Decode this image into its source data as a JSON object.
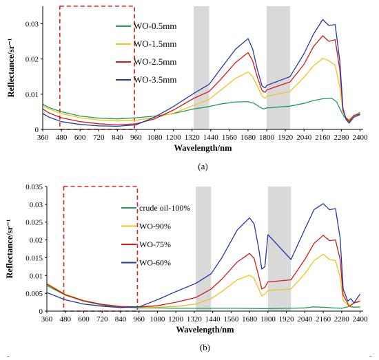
{
  "chart_data": [
    {
      "type": "line",
      "caption": "(a)",
      "xlabel": "Wavelength/nm",
      "ylabel": "Reflectance/sr⁻¹",
      "xlim": [
        360,
        2420
      ],
      "ylim": [
        0,
        0.035
      ],
      "x_ticks": [
        "360",
        "480",
        "600",
        "720",
        "840",
        "960",
        "1080",
        "1200",
        "1320",
        "1440",
        "1560",
        "1680",
        "1800",
        "1920",
        "2040",
        "2160",
        "2280",
        "2400"
      ],
      "y_ticks": [
        "0",
        "0.01",
        "0.02",
        "0.03"
      ],
      "y_tick_values": [
        0,
        0.01,
        0.02,
        0.03
      ],
      "grid": false,
      "legend_position": "top-left",
      "masked_bands": [
        [
          1330,
          1430
        ],
        [
          1800,
          1950
        ]
      ],
      "highlight_box": [
        470,
        950
      ],
      "series": [
        {
          "name": "WO-0.5mm",
          "color": "#1e9e50",
          "points": [
            [
              360,
              0.0072
            ],
            [
              400,
              0.0062
            ],
            [
              480,
              0.005
            ],
            [
              600,
              0.0038
            ],
            [
              720,
              0.0032
            ],
            [
              840,
              0.003
            ],
            [
              960,
              0.0033
            ],
            [
              1080,
              0.0038
            ],
            [
              1200,
              0.0045
            ],
            [
              1330,
              0.0058
            ],
            [
              1430,
              0.0065
            ],
            [
              1500,
              0.0072
            ],
            [
              1600,
              0.0078
            ],
            [
              1680,
              0.0079
            ],
            [
              1720,
              0.0074
            ],
            [
              1760,
              0.0062
            ],
            [
              1780,
              0.0058
            ],
            [
              1800,
              0.0061
            ],
            [
              1950,
              0.0066
            ],
            [
              2040,
              0.0074
            ],
            [
              2100,
              0.0082
            ],
            [
              2160,
              0.0087
            ],
            [
              2220,
              0.0088
            ],
            [
              2250,
              0.0078
            ],
            [
              2280,
              0.005
            ],
            [
              2300,
              0.0035
            ],
            [
              2330,
              0.0027
            ],
            [
              2360,
              0.0039
            ],
            [
              2400,
              0.0048
            ]
          ]
        },
        {
          "name": "WO-1.5mm",
          "color": "#f2c21a",
          "points": [
            [
              360,
              0.0068
            ],
            [
              400,
              0.0058
            ],
            [
              480,
              0.0045
            ],
            [
              600,
              0.0033
            ],
            [
              720,
              0.0027
            ],
            [
              840,
              0.0024
            ],
            [
              960,
              0.0026
            ],
            [
              1080,
              0.0034
            ],
            [
              1200,
              0.0046
            ],
            [
              1330,
              0.0068
            ],
            [
              1430,
              0.0085
            ],
            [
              1500,
              0.011
            ],
            [
              1600,
              0.0145
            ],
            [
              1680,
              0.0163
            ],
            [
              1710,
              0.015
            ],
            [
              1740,
              0.0123
            ],
            [
              1770,
              0.0095
            ],
            [
              1790,
              0.0088
            ],
            [
              1800,
              0.0094
            ],
            [
              1950,
              0.0108
            ],
            [
              2040,
              0.0148
            ],
            [
              2100,
              0.018
            ],
            [
              2160,
              0.0202
            ],
            [
              2200,
              0.0195
            ],
            [
              2240,
              0.0182
            ],
            [
              2270,
              0.012
            ],
            [
              2290,
              0.005
            ],
            [
              2310,
              0.0033
            ],
            [
              2330,
              0.0029
            ],
            [
              2360,
              0.0039
            ],
            [
              2400,
              0.0045
            ]
          ]
        },
        {
          "name": "WO-2.5mm",
          "color": "#d41818",
          "points": [
            [
              360,
              0.0058
            ],
            [
              400,
              0.0047
            ],
            [
              480,
              0.0033
            ],
            [
              600,
              0.0022
            ],
            [
              720,
              0.0016
            ],
            [
              840,
              0.0013
            ],
            [
              960,
              0.0016
            ],
            [
              1080,
              0.003
            ],
            [
              1200,
              0.0055
            ],
            [
              1330,
              0.0088
            ],
            [
              1430,
              0.0108
            ],
            [
              1500,
              0.014
            ],
            [
              1600,
              0.019
            ],
            [
              1680,
              0.0218
            ],
            [
              1710,
              0.0195
            ],
            [
              1740,
              0.0148
            ],
            [
              1770,
              0.011
            ],
            [
              1790,
              0.0105
            ],
            [
              1800,
              0.0112
            ],
            [
              1950,
              0.0135
            ],
            [
              2040,
              0.0185
            ],
            [
              2100,
              0.0235
            ],
            [
              2160,
              0.0266
            ],
            [
              2200,
              0.025
            ],
            [
              2240,
              0.0255
            ],
            [
              2270,
              0.017
            ],
            [
              2290,
              0.0055
            ],
            [
              2310,
              0.0032
            ],
            [
              2330,
              0.0022
            ],
            [
              2360,
              0.004
            ],
            [
              2400,
              0.0043
            ]
          ]
        },
        {
          "name": "WO-3.5mm",
          "color": "#2236a8",
          "points": [
            [
              360,
              0.0045
            ],
            [
              400,
              0.0035
            ],
            [
              480,
              0.0022
            ],
            [
              600,
              0.0014
            ],
            [
              720,
              0.001
            ],
            [
              840,
              0.0009
            ],
            [
              960,
              0.0013
            ],
            [
              1080,
              0.0035
            ],
            [
              1200,
              0.0065
            ],
            [
              1330,
              0.0102
            ],
            [
              1430,
              0.0128
            ],
            [
              1500,
              0.017
            ],
            [
              1600,
              0.0228
            ],
            [
              1680,
              0.0258
            ],
            [
              1710,
              0.0228
            ],
            [
              1740,
              0.017
            ],
            [
              1770,
              0.0123
            ],
            [
              1790,
              0.0118
            ],
            [
              1800,
              0.0125
            ],
            [
              1950,
              0.015
            ],
            [
              2040,
              0.0215
            ],
            [
              2100,
              0.027
            ],
            [
              2160,
              0.0312
            ],
            [
              2200,
              0.0295
            ],
            [
              2240,
              0.0298
            ],
            [
              2270,
              0.0195
            ],
            [
              2290,
              0.006
            ],
            [
              2310,
              0.0028
            ],
            [
              2330,
              0.0018
            ],
            [
              2360,
              0.0035
            ],
            [
              2400,
              0.0042
            ]
          ]
        }
      ]
    },
    {
      "type": "line",
      "caption": "(b)",
      "xlabel": "Wavelength/nm",
      "ylabel": "Reflectance/sr⁻¹",
      "xlim": [
        360,
        2420
      ],
      "ylim": [
        0,
        0.035
      ],
      "x_ticks": [
        "360",
        "480",
        "600",
        "720",
        "840",
        "960",
        "1080",
        "1200",
        "1320",
        "1440",
        "1560",
        "1680",
        "1800",
        "1920",
        "2040",
        "2160",
        "2280",
        "2400"
      ],
      "y_ticks": [
        "0",
        "0.005",
        "0.01",
        "0.015",
        "0.02",
        "0.025",
        "0.03",
        "0.035"
      ],
      "y_tick_values": [
        0,
        0.005,
        0.01,
        0.015,
        0.02,
        0.025,
        0.03,
        0.035
      ],
      "grid": false,
      "legend_position": "top-left",
      "masked_bands": [
        [
          1330,
          1430
        ],
        [
          1800,
          1950
        ]
      ],
      "highlight_box": [
        470,
        950
      ],
      "series": [
        {
          "name": "crude oil-100%",
          "color": "#1e9e50",
          "points": [
            [
              360,
              0.0072
            ],
            [
              480,
              0.0045
            ],
            [
              600,
              0.0028
            ],
            [
              720,
              0.0017
            ],
            [
              840,
              0.0012
            ],
            [
              960,
              0.0009
            ],
            [
              1080,
              0.0009
            ],
            [
              1200,
              0.0008
            ],
            [
              1330,
              0.0008
            ],
            [
              1430,
              0.0008
            ],
            [
              1600,
              0.0008
            ],
            [
              1800,
              0.0007
            ],
            [
              1950,
              0.0008
            ],
            [
              2040,
              0.0009
            ],
            [
              2100,
              0.0012
            ],
            [
              2160,
              0.0011
            ],
            [
              2220,
              0.0009
            ],
            [
              2280,
              0.0008
            ],
            [
              2330,
              0.0013
            ],
            [
              2360,
              0.0011
            ],
            [
              2400,
              0.0012
            ]
          ]
        },
        {
          "name": "WO-90%",
          "color": "#f2c21a",
          "points": [
            [
              360,
              0.0078
            ],
            [
              480,
              0.0048
            ],
            [
              600,
              0.003
            ],
            [
              720,
              0.0019
            ],
            [
              840,
              0.0013
            ],
            [
              960,
              0.0011
            ],
            [
              1080,
              0.0011
            ],
            [
              1200,
              0.0013
            ],
            [
              1330,
              0.002
            ],
            [
              1430,
              0.0035
            ],
            [
              1500,
              0.0055
            ],
            [
              1600,
              0.0088
            ],
            [
              1680,
              0.0101
            ],
            [
              1710,
              0.0092
            ],
            [
              1740,
              0.0062
            ],
            [
              1760,
              0.0043
            ],
            [
              1780,
              0.0048
            ],
            [
              1800,
              0.0058
            ],
            [
              1950,
              0.0062
            ],
            [
              2040,
              0.0105
            ],
            [
              2100,
              0.0142
            ],
            [
              2160,
              0.016
            ],
            [
              2200,
              0.0145
            ],
            [
              2240,
              0.0142
            ],
            [
              2270,
              0.0095
            ],
            [
              2290,
              0.003
            ],
            [
              2330,
              0.0012
            ],
            [
              2360,
              0.0022
            ],
            [
              2400,
              0.0032
            ]
          ]
        },
        {
          "name": "WO-75%",
          "color": "#d41818",
          "points": [
            [
              360,
              0.0076
            ],
            [
              480,
              0.0046
            ],
            [
              600,
              0.0029
            ],
            [
              720,
              0.0019
            ],
            [
              840,
              0.0013
            ],
            [
              960,
              0.0012
            ],
            [
              1080,
              0.0015
            ],
            [
              1200,
              0.0025
            ],
            [
              1330,
              0.0038
            ],
            [
              1430,
              0.0062
            ],
            [
              1500,
              0.009
            ],
            [
              1600,
              0.0138
            ],
            [
              1680,
              0.0162
            ],
            [
              1710,
              0.0148
            ],
            [
              1740,
              0.0098
            ],
            [
              1760,
              0.0062
            ],
            [
              1780,
              0.0067
            ],
            [
              1800,
              0.0082
            ],
            [
              1950,
              0.0088
            ],
            [
              2040,
              0.0145
            ],
            [
              2100,
              0.019
            ],
            [
              2160,
              0.0213
            ],
            [
              2200,
              0.0198
            ],
            [
              2240,
              0.02
            ],
            [
              2270,
              0.0145
            ],
            [
              2290,
              0.0045
            ],
            [
              2330,
              0.0014
            ],
            [
              2360,
              0.0023
            ],
            [
              2400,
              0.0027
            ]
          ]
        },
        {
          "name": "WO-60%",
          "color": "#2236a8",
          "points": [
            [
              360,
              0.0052
            ],
            [
              480,
              0.0032
            ],
            [
              600,
              0.002
            ],
            [
              720,
              0.0014
            ],
            [
              840,
              0.001
            ],
            [
              960,
              0.0012
            ],
            [
              1080,
              0.0032
            ],
            [
              1200,
              0.0055
            ],
            [
              1330,
              0.0078
            ],
            [
              1430,
              0.0105
            ],
            [
              1500,
              0.015
            ],
            [
              1600,
              0.0228
            ],
            [
              1680,
              0.0262
            ],
            [
              1710,
              0.0245
            ],
            [
              1740,
              0.0175
            ],
            [
              1760,
              0.0118
            ],
            [
              1780,
              0.0125
            ],
            [
              1800,
              0.0215
            ],
            [
              1950,
              0.0145
            ],
            [
              2040,
              0.023
            ],
            [
              2100,
              0.0285
            ],
            [
              2160,
              0.0302
            ],
            [
              2200,
              0.0285
            ],
            [
              2240,
              0.0288
            ],
            [
              2270,
              0.0205
            ],
            [
              2290,
              0.0062
            ],
            [
              2320,
              0.0028
            ],
            [
              2340,
              0.0035
            ],
            [
              2360,
              0.0023
            ],
            [
              2400,
              0.0048
            ]
          ]
        }
      ]
    }
  ],
  "page_marks": [
    "-",
    "-"
  ]
}
